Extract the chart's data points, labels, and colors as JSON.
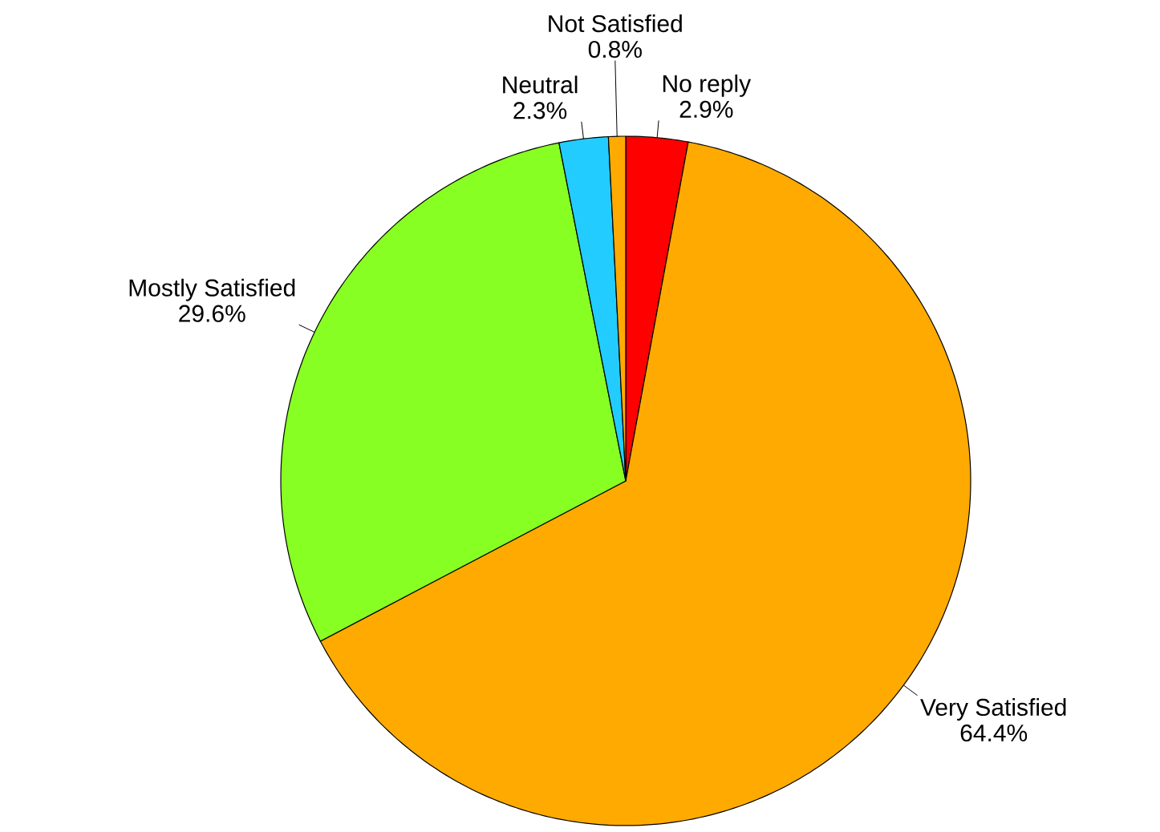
{
  "chart_data": {
    "type": "pie",
    "categories": [
      "No reply",
      "Very Satisfied",
      "Mostly Satisfied",
      "Neutral",
      "Not Satisfied"
    ],
    "values": [
      2.9,
      64.4,
      29.6,
      2.3,
      0.8
    ],
    "colors": [
      "#ff0000",
      "#ffaa00",
      "#88ff22",
      "#22ccff",
      "#ffaa00"
    ],
    "value_labels": [
      "2.9%",
      "64.4%",
      "29.6%",
      "2.3%",
      "0.8%"
    ]
  }
}
